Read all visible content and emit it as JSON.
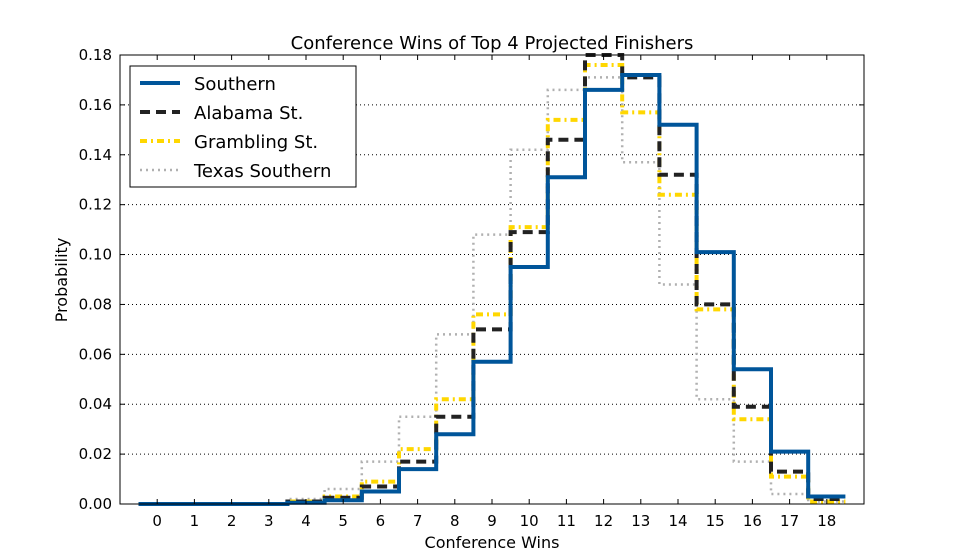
{
  "chart_data": {
    "type": "line",
    "step": true,
    "title": "Conference Wins of Top 4 Projected Finishers",
    "xlabel": "Conference Wins",
    "ylabel": "Probability",
    "x": [
      0,
      1,
      2,
      3,
      4,
      5,
      6,
      7,
      8,
      9,
      10,
      11,
      12,
      13,
      14,
      15,
      16,
      17,
      18
    ],
    "xlim": [
      -1,
      19
    ],
    "ylim": [
      0,
      0.18
    ],
    "yticks": [
      "0.00",
      "0.02",
      "0.04",
      "0.06",
      "0.08",
      "0.10",
      "0.12",
      "0.14",
      "0.16",
      "0.18"
    ],
    "grid": "y-dotted",
    "legend_position": "top-left",
    "series": [
      {
        "name": "Southern",
        "color": "#00559a",
        "style": "solid",
        "values": [
          0,
          0,
          0,
          0,
          0.0005,
          0.0015,
          0.005,
          0.014,
          0.028,
          0.057,
          0.095,
          0.131,
          0.166,
          0.172,
          0.152,
          0.101,
          0.054,
          0.021,
          0.003
        ]
      },
      {
        "name": "Alabama St.",
        "color": "#222222",
        "style": "dashed",
        "values": [
          0,
          0,
          0,
          0,
          0.001,
          0.0025,
          0.007,
          0.017,
          0.035,
          0.07,
          0.109,
          0.146,
          0.18,
          0.171,
          0.132,
          0.08,
          0.039,
          0.013,
          0.002
        ]
      },
      {
        "name": "Grambling St.",
        "color": "#ffd700",
        "style": "dashdot",
        "values": [
          0,
          0,
          0,
          0,
          0.001,
          0.003,
          0.009,
          0.022,
          0.042,
          0.076,
          0.111,
          0.154,
          0.176,
          0.157,
          0.124,
          0.078,
          0.034,
          0.011,
          0.001
        ]
      },
      {
        "name": "Texas Southern",
        "color": "#b0b0b0",
        "style": "dotted",
        "values": [
          0,
          0,
          0,
          0,
          0.002,
          0.006,
          0.017,
          0.035,
          0.068,
          0.108,
          0.142,
          0.166,
          0.171,
          0.137,
          0.088,
          0.042,
          0.017,
          0.004,
          0.001
        ]
      }
    ]
  }
}
